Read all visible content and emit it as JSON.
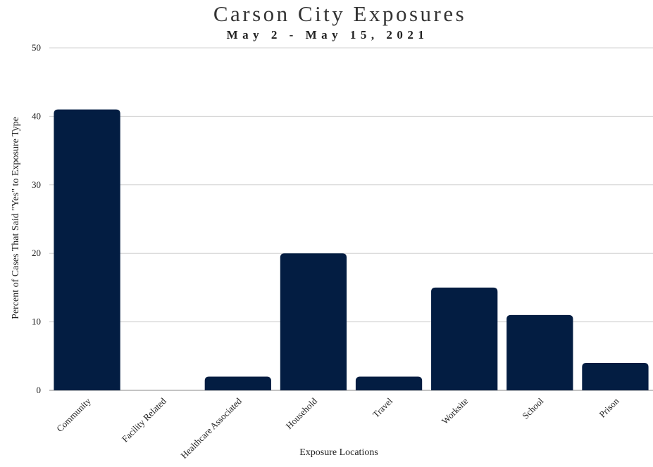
{
  "chart_data": {
    "type": "bar",
    "title": "Carson City Exposures",
    "subtitle": "May 2 - May 15, 2021",
    "xlabel": "Exposure Locations",
    "ylabel": "Percent of Cases That Said \"Yes\" to Exposure Type",
    "ylim": [
      0,
      50
    ],
    "yticks": [
      "0",
      "10",
      "20",
      "30",
      "40",
      "50"
    ],
    "grid": true,
    "categories": [
      "Community",
      "Facility Related",
      "Healthcare Associated",
      "Household",
      "Travel",
      "Worksite",
      "School",
      "Prison"
    ],
    "values": [
      41,
      0,
      2,
      20,
      2,
      15,
      11,
      4
    ],
    "bar_color": "#031d42"
  }
}
